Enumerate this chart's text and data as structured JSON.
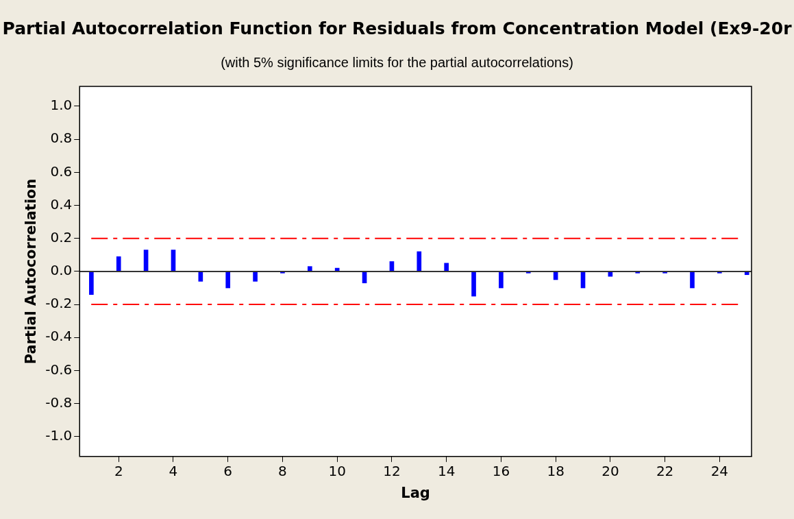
{
  "chart_data": {
    "type": "bar",
    "title": "Partial Autocorrelation Function for Residuals from Concentration Model (Ex9-20r",
    "subtitle": "(with 5% significance limits for the partial autocorrelations)",
    "xlabel": "Lag",
    "ylabel": "Partial Autocorrelation",
    "x": [
      1,
      2,
      3,
      4,
      5,
      6,
      7,
      8,
      9,
      10,
      11,
      12,
      13,
      14,
      15,
      16,
      17,
      18,
      19,
      20,
      21,
      22,
      23,
      24,
      25
    ],
    "series": [
      {
        "color": "#0000ff",
        "values": [
          -0.14,
          0.09,
          0.13,
          0.13,
          -0.06,
          -0.1,
          -0.06,
          -0.01,
          0.03,
          0.02,
          -0.07,
          0.06,
          0.12,
          0.05,
          -0.15,
          -0.1,
          -0.01,
          -0.05,
          -0.1,
          -0.03,
          -0.01,
          -0.01,
          -0.1,
          -0.01,
          -0.02
        ]
      }
    ],
    "xlim": [
      0.57,
      25.17
    ],
    "xticks": [
      2,
      4,
      6,
      8,
      10,
      12,
      14,
      16,
      18,
      20,
      22,
      24
    ],
    "ylim": [
      -1.12,
      1.12
    ],
    "yticks": [
      {
        "value": -1,
        "label": "-1.0"
      },
      {
        "value": -0.8,
        "label": "-0.8"
      },
      {
        "value": -0.6,
        "label": "-0.6"
      },
      {
        "value": -0.4,
        "label": "-0.4"
      },
      {
        "value": -0.2,
        "label": "-0.2"
      },
      {
        "value": 0,
        "label": "0.0"
      },
      {
        "value": 0.2,
        "label": "0.2"
      },
      {
        "value": 0.4,
        "label": "0.4"
      },
      {
        "value": 0.6,
        "label": "0.6"
      },
      {
        "value": 0.8,
        "label": "0.8"
      },
      {
        "value": 1,
        "label": "1.0"
      }
    ],
    "ref_lines": [
      {
        "axis": "y",
        "value": 0,
        "color": "#333333",
        "line_style": "solid"
      },
      {
        "axis": "y",
        "value": 0.2,
        "color": "#ff0000",
        "line_style": "dashed"
      },
      {
        "axis": "y",
        "value": -0.2,
        "color": "#ff0000",
        "line_style": "dashed"
      }
    ],
    "grid": false,
    "legend": false
  }
}
